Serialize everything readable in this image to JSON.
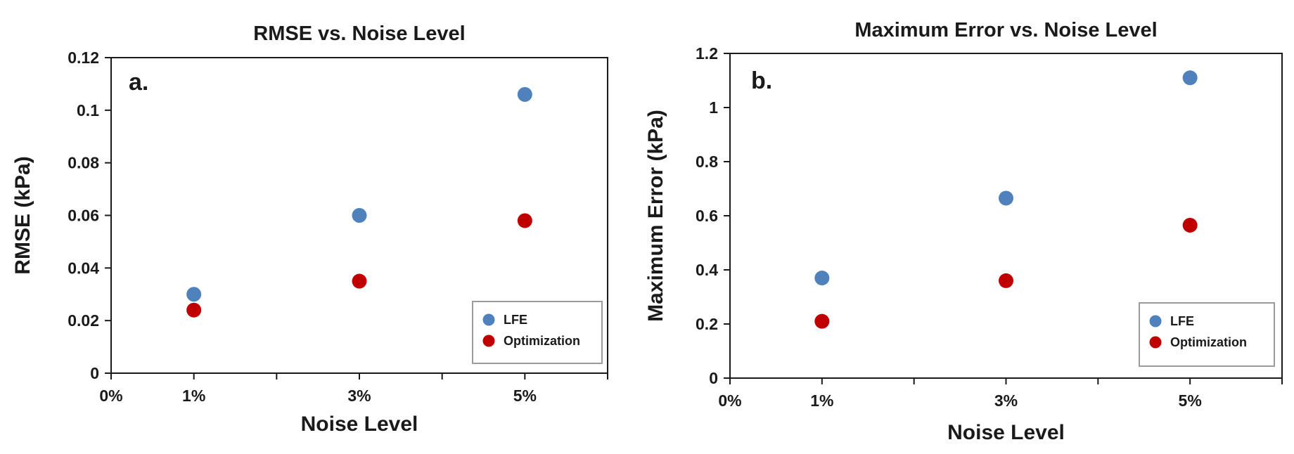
{
  "colors": {
    "LFE": "#4F81BD",
    "Optimization": "#C00000"
  },
  "chart_data": [
    {
      "type": "scatter",
      "panel_label": "a.",
      "title": "RMSE vs. Noise Level",
      "xlabel": "Noise Level",
      "ylabel": "RMSE (kPa)",
      "xlim": [
        0,
        6
      ],
      "ylim": [
        0,
        0.12
      ],
      "x_ticks": [
        0,
        1,
        2,
        3,
        4,
        5,
        6
      ],
      "x_tick_labels": [
        "0%",
        "1%",
        "",
        "3%",
        "",
        "5%",
        ""
      ],
      "y_ticks": [
        0,
        0.02,
        0.04,
        0.06,
        0.08,
        0.1,
        0.12
      ],
      "y_tick_labels": [
        "0",
        "0.02",
        "0.04",
        "0.06",
        "0.08",
        "0.1",
        "0.12"
      ],
      "legend_position": "bottom-right",
      "series": [
        {
          "name": "LFE",
          "color": "#4F81BD",
          "x": [
            1,
            3,
            5
          ],
          "values": [
            0.03,
            0.06,
            0.106
          ]
        },
        {
          "name": "Optimization",
          "color": "#C00000",
          "x": [
            1,
            3,
            5
          ],
          "values": [
            0.024,
            0.035,
            0.058
          ]
        }
      ]
    },
    {
      "type": "scatter",
      "panel_label": "b.",
      "title": "Maximum Error vs. Noise Level",
      "xlabel": "Noise Level",
      "ylabel": "Maximum Error (kPa)",
      "xlim": [
        0,
        6
      ],
      "ylim": [
        0,
        1.2
      ],
      "x_ticks": [
        0,
        1,
        2,
        3,
        4,
        5,
        6
      ],
      "x_tick_labels": [
        "0%",
        "1%",
        "",
        "3%",
        "",
        "5%",
        ""
      ],
      "y_ticks": [
        0,
        0.2,
        0.4,
        0.6,
        0.8,
        1.0,
        1.2
      ],
      "y_tick_labels": [
        "0",
        "0.2",
        "0.4",
        "0.6",
        "0.8",
        "1",
        "1.2"
      ],
      "legend_position": "bottom-right",
      "series": [
        {
          "name": "LFE",
          "color": "#4F81BD",
          "x": [
            1,
            3,
            5
          ],
          "values": [
            0.37,
            0.665,
            1.11
          ]
        },
        {
          "name": "Optimization",
          "color": "#C00000",
          "x": [
            1,
            3,
            5
          ],
          "values": [
            0.21,
            0.36,
            0.565
          ]
        }
      ]
    }
  ]
}
